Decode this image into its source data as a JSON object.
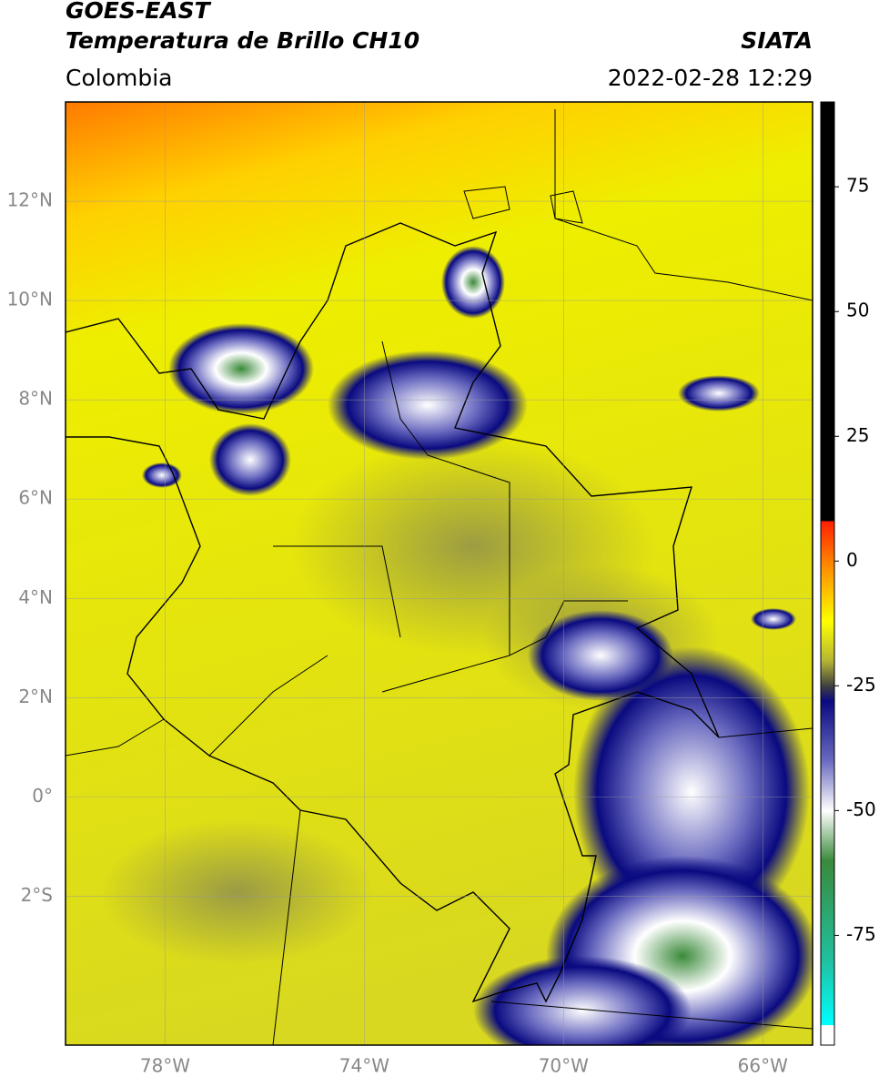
{
  "header": {
    "title_line1": "GOES-EAST",
    "title_line2": "Temperatura de Brillo CH10",
    "source": "SIATA",
    "region": "Colombia",
    "datetime": "2022-02-28 12:29"
  },
  "map": {
    "lonlim": [
      -80,
      -65
    ],
    "latlim": [
      -5,
      14
    ],
    "xticks": [
      {
        "value": -78,
        "label": "78°W"
      },
      {
        "value": -74,
        "label": "74°W"
      },
      {
        "value": -70,
        "label": "70°W"
      },
      {
        "value": -66,
        "label": "66°W"
      }
    ],
    "yticks": [
      {
        "value": 12,
        "label": "12°N"
      },
      {
        "value": 10,
        "label": "10°N"
      },
      {
        "value": 8,
        "label": "8°N"
      },
      {
        "value": 6,
        "label": "6°N"
      },
      {
        "value": 4,
        "label": "4°N"
      },
      {
        "value": 2,
        "label": "2°N"
      },
      {
        "value": 0,
        "label": "0°"
      },
      {
        "value": -2,
        "label": "2°S"
      }
    ],
    "grid": true
  },
  "colorbar": {
    "lim": [
      -97,
      92
    ],
    "ticks": [
      75,
      50,
      25,
      0,
      -25,
      -50,
      -75
    ],
    "stops": [
      {
        "value": 92,
        "color": "#000000"
      },
      {
        "value": 8,
        "color": "#000000"
      },
      {
        "value": 8,
        "color": "#ff2000"
      },
      {
        "value": 0,
        "color": "#ff8000"
      },
      {
        "value": -12,
        "color": "#ffff00"
      },
      {
        "value": -20,
        "color": "#b5b535"
      },
      {
        "value": -25,
        "color": "#404040"
      },
      {
        "value": -28,
        "color": "#0a0a80"
      },
      {
        "value": -40,
        "color": "#6a6ac0"
      },
      {
        "value": -50,
        "color": "#ffffff"
      },
      {
        "value": -60,
        "color": "#3a8a3a"
      },
      {
        "value": -80,
        "color": "#20c0a0"
      },
      {
        "value": -93,
        "color": "#00ffff"
      },
      {
        "value": -93,
        "color": "#ffffff"
      },
      {
        "value": -97,
        "color": "#ffffff"
      }
    ]
  }
}
